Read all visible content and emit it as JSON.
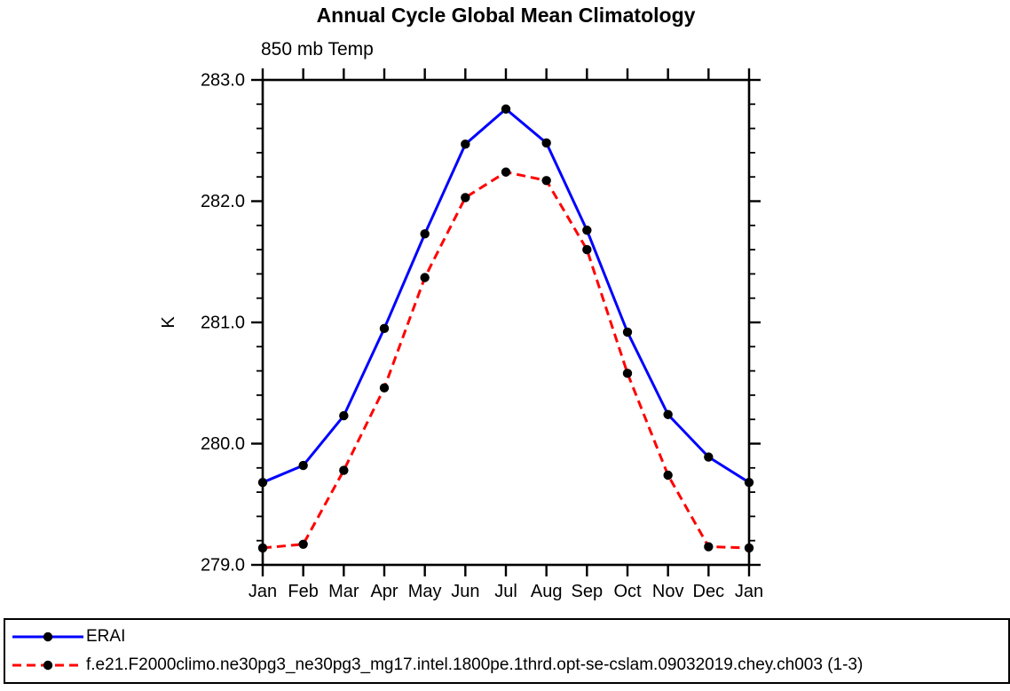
{
  "page": {
    "title": "Annual Cycle Global Mean Climatology",
    "subtitle": "850 mb Temp"
  },
  "chart_data": {
    "type": "line",
    "title": "Annual Cycle Global Mean Climatology",
    "subtitle": "850 mb Temp",
    "xlabel": "",
    "ylabel": "K",
    "categories": [
      "Jan",
      "Feb",
      "Mar",
      "Apr",
      "May",
      "Jun",
      "Jul",
      "Aug",
      "Sep",
      "Oct",
      "Nov",
      "Dec",
      "Jan"
    ],
    "ylim": [
      279.0,
      283.0
    ],
    "ytick_major": 1.0,
    "ytick_minor": 0.2,
    "ytick_labels": [
      "279.0",
      "280.0",
      "281.0",
      "282.0",
      "283.0"
    ],
    "grid": false,
    "legend_position": "bottom-box",
    "series": [
      {
        "name": "ERAI",
        "color": "#0000ff",
        "style": "solid",
        "marker": "circle",
        "marker_color": "#000000",
        "values": [
          279.68,
          279.82,
          280.23,
          280.95,
          281.73,
          282.47,
          282.76,
          282.48,
          281.76,
          280.92,
          280.24,
          279.89,
          279.68
        ]
      },
      {
        "name": "f.e21.F2000climo.ne30pg3_ne30pg3_mg17.intel.1800pe.1thrd.opt-se-cslam.09032019.chey.ch003 (1-3)",
        "color": "#ff0000",
        "style": "dashed",
        "marker": "circle",
        "marker_color": "#000000",
        "values": [
          279.14,
          279.17,
          279.78,
          280.46,
          281.37,
          282.03,
          282.24,
          282.17,
          281.6,
          280.58,
          279.74,
          279.15,
          279.14
        ]
      }
    ]
  }
}
